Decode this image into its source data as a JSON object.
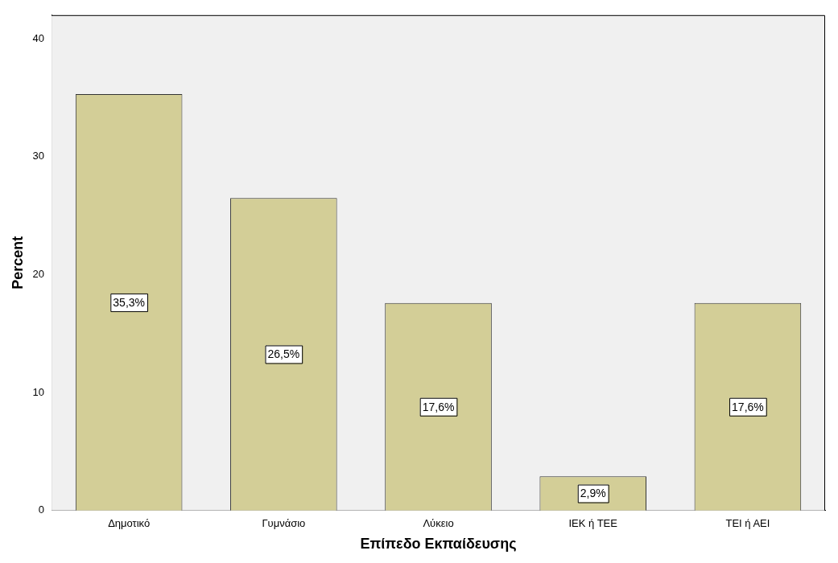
{
  "chart_data": {
    "type": "bar",
    "xlabel": "Επίπεδο Εκπαίδευσης",
    "ylabel": "Percent",
    "categories": [
      "Δημοτικό",
      "Γυμνάσιο",
      "Λύκειο",
      "ΙΕΚ ή ΤΕΕ",
      "ΤΕΙ ή ΑΕΙ"
    ],
    "values": [
      35.3,
      26.5,
      17.6,
      2.9,
      17.6
    ],
    "value_labels": [
      "35,3%",
      "26,5%",
      "17,6%",
      "2,9%",
      "17,6%"
    ],
    "color": "#d3ce97",
    "ylim": [
      0,
      42
    ],
    "yticks": [
      0,
      10,
      20,
      30,
      40
    ]
  }
}
